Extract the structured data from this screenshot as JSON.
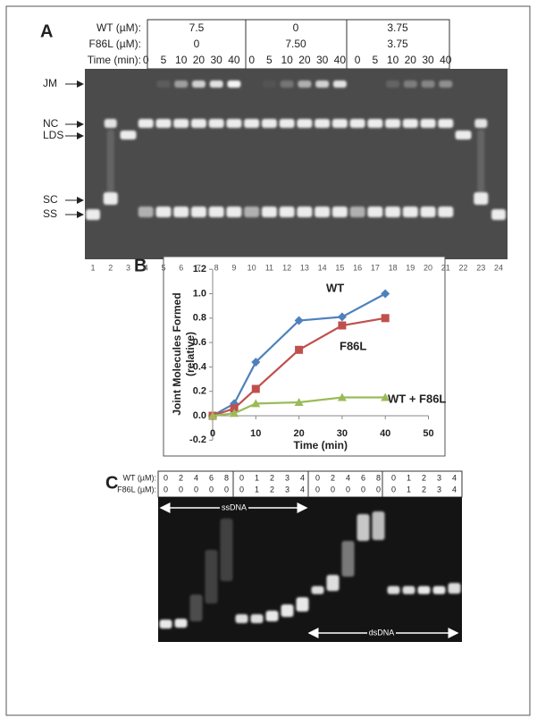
{
  "panel_a": {
    "label": "A",
    "header": {
      "rows": [
        {
          "label": "WT (µM):",
          "groups": [
            "7.5",
            "0",
            "3.75"
          ]
        },
        {
          "label": "F86L (µM):",
          "groups": [
            "0",
            "7.50",
            "3.75"
          ]
        }
      ],
      "time_label": "Time (min):",
      "times": [
        "0",
        "5",
        "10",
        "20",
        "30",
        "40",
        "0",
        "5",
        "10",
        "20",
        "30",
        "40",
        "0",
        "5",
        "10",
        "20",
        "30",
        "40"
      ]
    },
    "band_labels": [
      "JM",
      "NC",
      "LDS",
      "SC",
      "SS"
    ],
    "lanes": [
      "1",
      "2",
      "3",
      "4",
      "5",
      "6",
      "7",
      "8",
      "9",
      "10",
      "11",
      "12",
      "13",
      "14",
      "15",
      "16",
      "17",
      "18",
      "19",
      "20",
      "21",
      "22",
      "23",
      "24"
    ]
  },
  "chart_data": {
    "type": "line",
    "panel_label": "B",
    "x_label": "Time (min)",
    "y_label": [
      "Joint Molecules Formed",
      "(relative)"
    ],
    "x": [
      0,
      5,
      10,
      20,
      30,
      40
    ],
    "xlim": [
      0,
      50
    ],
    "xticks": [
      0,
      10,
      20,
      30,
      40,
      50
    ],
    "ylim": [
      -0.2,
      1.2
    ],
    "yticks": [
      -0.2,
      {
        "value": 0,
        "label": "0.0"
      },
      0.2,
      0.4,
      0.6,
      0.8,
      {
        "value": 1,
        "label": "1.0"
      },
      1.2
    ],
    "series": [
      {
        "name": "WT",
        "color": "#4f81bd",
        "marker": "diamond",
        "values": [
          0,
          0.1,
          0.44,
          0.78,
          0.81,
          1.0
        ]
      },
      {
        "name": "F86L",
        "color": "#c0504d",
        "marker": "square",
        "values": [
          0,
          0.06,
          0.22,
          0.54,
          0.74,
          0.8
        ]
      },
      {
        "name": "WT + F86L",
        "color": "#9bbb59",
        "marker": "triangle",
        "values": [
          0,
          0.02,
          0.1,
          0.11,
          0.15,
          0.15
        ]
      }
    ]
  },
  "panel_c": {
    "label": "C",
    "header": {
      "rows": [
        {
          "label": "WT (µM):",
          "values": [
            "0",
            "2",
            "4",
            "6",
            "8",
            "0",
            "1",
            "2",
            "3",
            "4",
            "0",
            "2",
            "4",
            "6",
            "8",
            "0",
            "1",
            "2",
            "3",
            "4"
          ]
        },
        {
          "label": "F86L (µM):",
          "values": [
            "0",
            "0",
            "0",
            "0",
            "0",
            "0",
            "1",
            "2",
            "3",
            "4",
            "0",
            "0",
            "0",
            "0",
            "0",
            "0",
            "1",
            "2",
            "3",
            "4"
          ]
        }
      ]
    },
    "ssdna_label": "ssDNA",
    "dsdna_label": "dsDNA"
  }
}
